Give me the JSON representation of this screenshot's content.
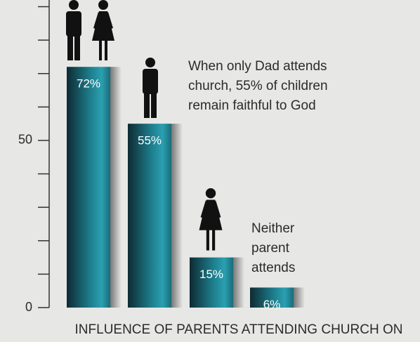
{
  "chart_data": {
    "type": "bar",
    "title": "INFLUENCE OF PARENTS ATTENDING CHURCH ON",
    "values": [
      72,
      55,
      15,
      6
    ],
    "value_labels": [
      "72%",
      "55%",
      "15%",
      "6%"
    ],
    "color": "#1e7f8e",
    "ylim": [
      0,
      92
    ],
    "yticks": [
      0,
      50
    ],
    "minor_yticks": [
      10,
      20,
      30,
      40,
      60,
      70,
      80,
      90
    ],
    "annotations": [
      {
        "lines": [
          "When only Dad attends",
          "church, 55% of children",
          "remain faithful to God"
        ]
      },
      {
        "lines": [
          "Neither",
          "parent",
          "attends"
        ]
      }
    ]
  }
}
